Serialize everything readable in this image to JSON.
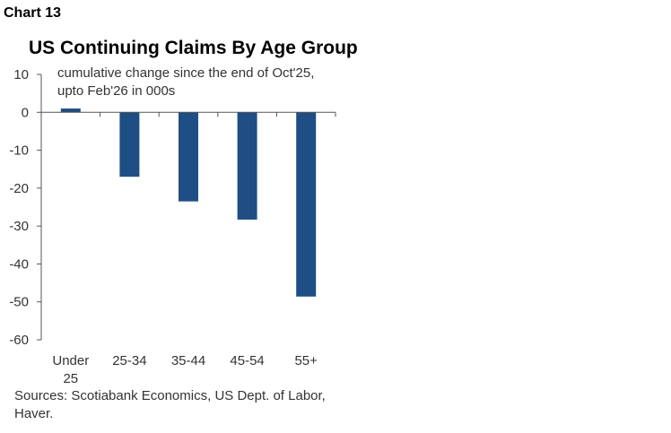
{
  "header": {
    "chart_number": "Chart 13"
  },
  "chart_data": {
    "type": "bar",
    "title": "US Continuing Claims By Age Group",
    "subtitle_lines": [
      "cumulative change since the end of Oct'25,",
      "upto Feb'26 in 000s"
    ],
    "categories": [
      "Under 25",
      "25-34",
      "35-44",
      "45-54",
      "55+"
    ],
    "category_label_lines": [
      [
        "Under",
        "25"
      ],
      [
        "25-34"
      ],
      [
        "35-44"
      ],
      [
        "45-54"
      ],
      [
        "55+"
      ]
    ],
    "values": [
      1,
      -17,
      -23.5,
      -28.3,
      -48.6
    ],
    "xlabel": "",
    "ylabel": "",
    "ylim": [
      -60,
      10
    ],
    "yticks": [
      10,
      0,
      -10,
      -20,
      -30,
      -40,
      -50,
      -60
    ],
    "ytick_labels": [
      "10",
      "0",
      "-10",
      "-20",
      "-30",
      "-40",
      "-50",
      "-60"
    ],
    "bar_color": "#1f4e85",
    "grid": false,
    "legend": "none"
  },
  "footer": {
    "source_lines": [
      "Sources: Scotiabank Economics, US Dept. of Labor,",
      "Haver."
    ]
  }
}
